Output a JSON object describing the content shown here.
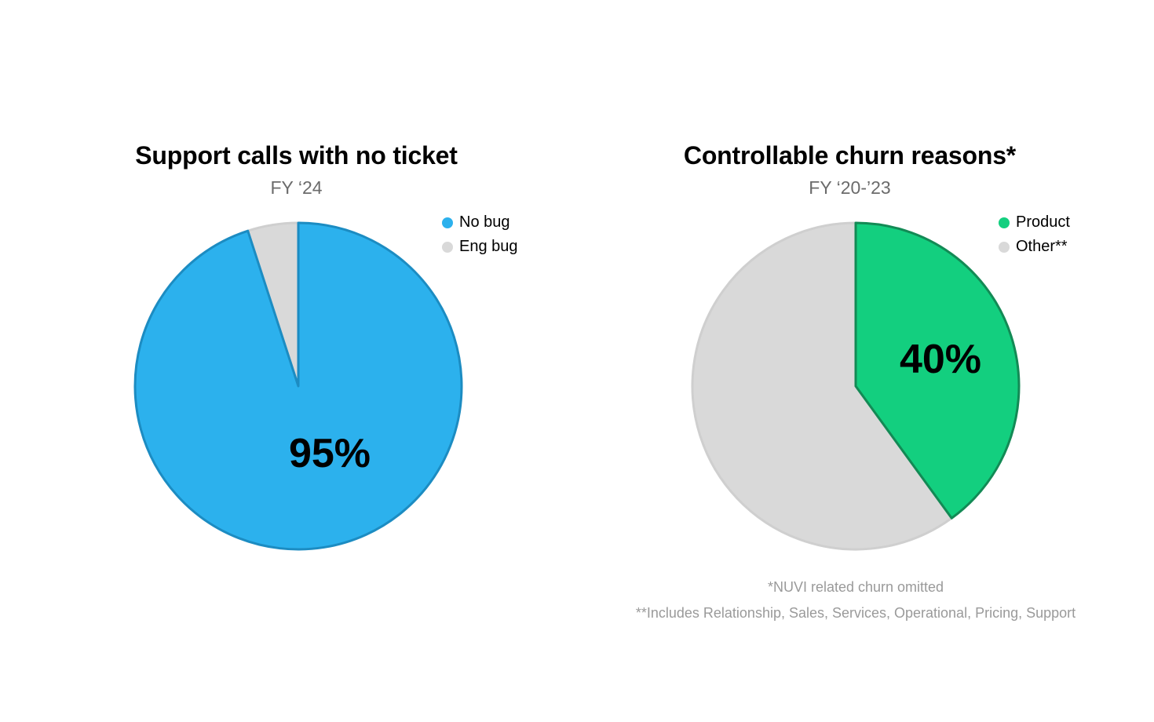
{
  "chart_data": [
    {
      "type": "pie",
      "title": "Support calls with no ticket",
      "subtitle": "FY ‘24",
      "series": [
        {
          "name": "No bug",
          "value": 95,
          "color": "#2cb1ed",
          "stroke": "#1c8cc2"
        },
        {
          "name": "Eng bug",
          "value": 5,
          "color": "#d9d9d9",
          "stroke": "#cfcfcf"
        }
      ],
      "data_label": "95%",
      "legend_position": "top-right"
    },
    {
      "type": "pie",
      "title": "Controllable churn reasons*",
      "subtitle": "FY ‘20-’23",
      "series": [
        {
          "name": "Product",
          "value": 40,
          "color": "#13cf7f",
          "stroke": "#138a55"
        },
        {
          "name": "Other**",
          "value": 60,
          "color": "#d9d9d9",
          "stroke": "#cfcfcf"
        }
      ],
      "data_label": "40%",
      "legend_position": "top-right",
      "footnotes": [
        "*NUVI related churn omitted",
        "**Includes Relationship, Sales, Services, Operational, Pricing, Support"
      ]
    }
  ]
}
